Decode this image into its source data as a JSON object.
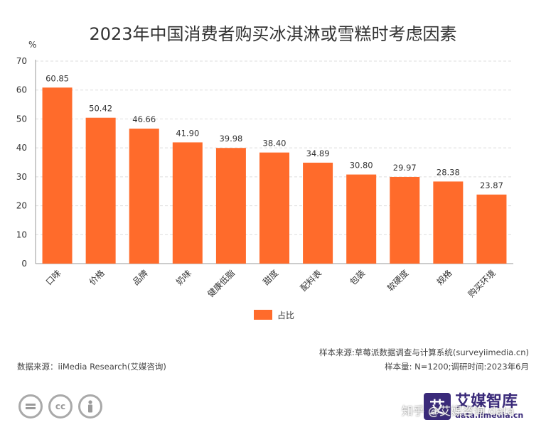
{
  "chart_data": {
    "type": "bar",
    "title": "2023年中国消费者购买冰淇淋或雪糕时考虑因素",
    "ylabel": "%",
    "categories": [
      "口味",
      "价格",
      "品牌",
      "奶味",
      "健康低脂",
      "甜度",
      "配料表",
      "包装",
      "软硬度",
      "规格",
      "购买环境"
    ],
    "series": [
      {
        "name": "占比",
        "values": [
          60.85,
          50.42,
          46.66,
          41.9,
          39.98,
          38.4,
          34.89,
          30.8,
          29.97,
          28.38,
          23.87
        ]
      }
    ],
    "value_labels": [
      "60.85",
      "50.42",
      "46.66",
      "41.90",
      "39.98",
      "38.40",
      "34.89",
      "30.80",
      "29.97",
      "28.38",
      "23.87"
    ],
    "ylim": [
      0,
      70
    ],
    "yticks": [
      0,
      10,
      20,
      30,
      40,
      50,
      60,
      70
    ],
    "grid": true,
    "legend_position": "bottom-center",
    "bar_color": "#ff6b2b"
  },
  "notes": {
    "source_right": "样本来源:草莓派数据调查与计算系统(surveyiimedia.cn)",
    "source_left": "数据来源：iiMedia Research(艾媒咨询)",
    "sample": "样本量: N=1200;调研时间:2023年6月"
  },
  "footer": {
    "cc_icons": [
      "equal-icon",
      "cc-icon",
      "person-icon"
    ],
    "cc_label": "cc",
    "logo_mark": "艾",
    "logo_name": "艾媒智库",
    "logo_url": "data.iimedia.cn",
    "watermark": "知乎 @艾媒咨询 data"
  }
}
